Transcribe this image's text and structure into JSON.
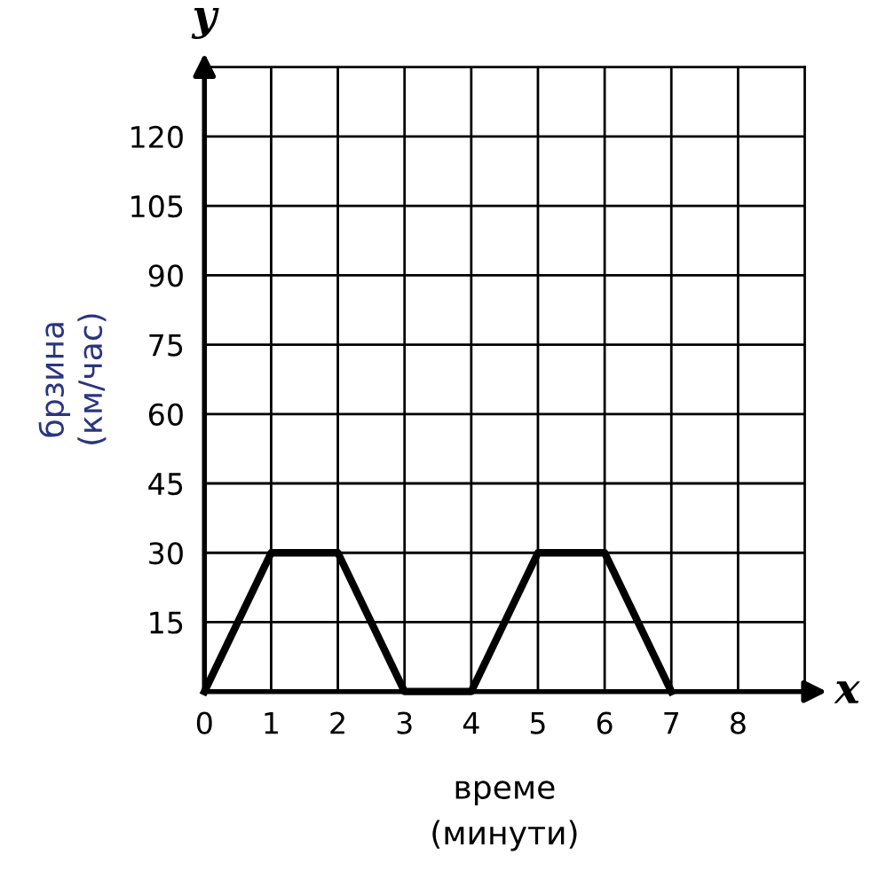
{
  "chart_data": {
    "type": "line",
    "xlabel": "време\n(минути)",
    "ylabel": "брзина\n(км/час)",
    "x": [
      0,
      1,
      2,
      3,
      4,
      5,
      6,
      7
    ],
    "series": [
      {
        "color": "#000000",
        "values": [
          0,
          30,
          30,
          0,
          0,
          30,
          30,
          0
        ]
      }
    ],
    "xlim": [
      0,
      9
    ],
    "ylim": [
      0,
      135
    ],
    "xticks": [
      0,
      1,
      2,
      3,
      4,
      5,
      6,
      7,
      8
    ],
    "yticks": [
      15,
      30,
      45,
      60,
      75,
      90,
      105,
      120
    ],
    "grid": true,
    "marker": "none",
    "line_style": "solid",
    "legend": false,
    "annotations": [
      "x",
      "y"
    ]
  }
}
